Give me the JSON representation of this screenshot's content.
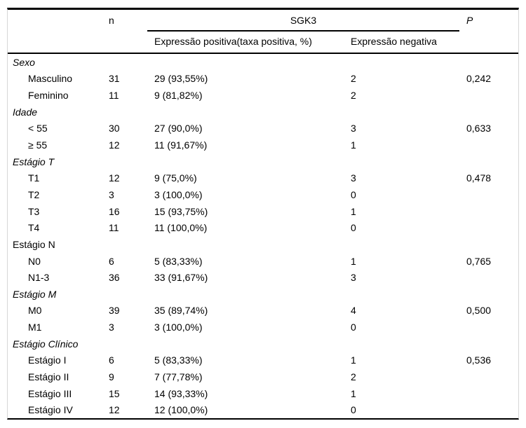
{
  "table": {
    "columns": {
      "n": "n",
      "group": "SGK3",
      "positive": "Expressão positiva(taxa positiva, %)",
      "negative": "Expressão negativa",
      "p": "P"
    },
    "rows": [
      {
        "label": "Sexo",
        "type": "section",
        "italic": true,
        "n": "",
        "positive": "",
        "negative": "",
        "p": ""
      },
      {
        "label": "Masculino",
        "type": "item",
        "italic": false,
        "n": "31",
        "positive": "29 (93,55%)",
        "negative": "2",
        "p": "0,242"
      },
      {
        "label": "Feminino",
        "type": "item",
        "italic": false,
        "n": "11",
        "positive": "9 (81,82%)",
        "negative": "2",
        "p": ""
      },
      {
        "label": "Idade",
        "type": "section",
        "italic": true,
        "n": "",
        "positive": "",
        "negative": "",
        "p": ""
      },
      {
        "label": "< 55",
        "type": "item",
        "italic": false,
        "n": "30",
        "positive": "27 (90,0%)",
        "negative": "3",
        "p": "0,633"
      },
      {
        "label": "≥ 55",
        "type": "item",
        "italic": false,
        "n": "12",
        "positive": "11 (91,67%)",
        "negative": "1",
        "p": ""
      },
      {
        "label": "Estágio T",
        "type": "section",
        "italic": true,
        "n": "",
        "positive": "",
        "negative": "",
        "p": ""
      },
      {
        "label": "T1",
        "type": "item",
        "italic": false,
        "n": "12",
        "positive": "9 (75,0%)",
        "negative": "3",
        "p": "0,478"
      },
      {
        "label": "T2",
        "type": "item",
        "italic": false,
        "n": "3",
        "positive": "3 (100,0%)",
        "negative": "0",
        "p": ""
      },
      {
        "label": "T3",
        "type": "item",
        "italic": false,
        "n": "16",
        "positive": "15 (93,75%)",
        "negative": "1",
        "p": ""
      },
      {
        "label": "T4",
        "type": "item",
        "italic": false,
        "n": "11",
        "positive": "11 (100,0%)",
        "negative": "0",
        "p": ""
      },
      {
        "label": "Estágio N",
        "type": "section",
        "italic": false,
        "n": "",
        "positive": "",
        "negative": "",
        "p": ""
      },
      {
        "label": "N0",
        "type": "item",
        "italic": false,
        "n": "6",
        "positive": "5 (83,33%)",
        "negative": "1",
        "p": "0,765"
      },
      {
        "label": "N1-3",
        "type": "item",
        "italic": false,
        "n": "36",
        "positive": "33 (91,67%)",
        "negative": "3",
        "p": ""
      },
      {
        "label": "Estágio M",
        "type": "section",
        "italic": true,
        "n": "",
        "positive": "",
        "negative": "",
        "p": ""
      },
      {
        "label": "M0",
        "type": "item",
        "italic": false,
        "n": "39",
        "positive": "35 (89,74%)",
        "negative": "4",
        "p": "0,500"
      },
      {
        "label": "M1",
        "type": "item",
        "italic": false,
        "n": "3",
        "positive": "3 (100,0%)",
        "negative": "0",
        "p": ""
      },
      {
        "label": "Estágio Clínico",
        "type": "section",
        "italic": true,
        "n": "",
        "positive": "",
        "negative": "",
        "p": ""
      },
      {
        "label": "Estágio I",
        "type": "item",
        "italic": false,
        "n": "6",
        "positive": "5 (83,33%)",
        "negative": "1",
        "p": "0,536"
      },
      {
        "label": "Estágio II",
        "type": "item",
        "italic": false,
        "n": "9",
        "positive": "7 (77,78%)",
        "negative": "2",
        "p": ""
      },
      {
        "label": "Estágio III",
        "type": "item",
        "italic": false,
        "n": "15",
        "positive": "14 (93,33%)",
        "negative": "1",
        "p": ""
      },
      {
        "label": "Estágio IV",
        "type": "item",
        "italic": false,
        "n": "12",
        "positive": "12 (100,0%)",
        "negative": "0",
        "p": ""
      }
    ]
  }
}
